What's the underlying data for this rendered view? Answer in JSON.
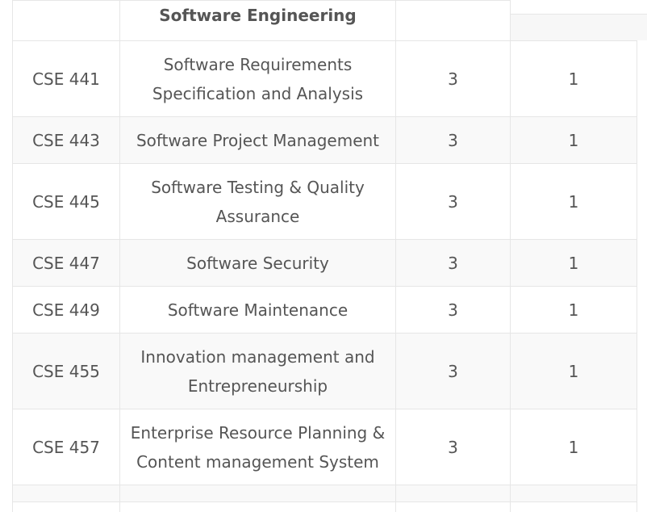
{
  "section_title": "Software Engineering",
  "rows": [
    {
      "code": "CSE 441",
      "title": "Software Requirements Specification and Analysis",
      "credit": "3",
      "col4": "1"
    },
    {
      "code": "CSE 443",
      "title": "Software Project Management",
      "credit": "3",
      "col4": "1"
    },
    {
      "code": "CSE 445",
      "title": "Software Testing & Quality Assurance",
      "credit": "3",
      "col4": "1"
    },
    {
      "code": "CSE 447",
      "title": "Software Security",
      "credit": "3",
      "col4": "1"
    },
    {
      "code": "CSE 449",
      "title": "Software Maintenance",
      "credit": "3",
      "col4": "1"
    },
    {
      "code": "CSE 455",
      "title": "Innovation management and Entrepreneurship",
      "credit": "3",
      "col4": "1"
    },
    {
      "code": "CSE 457",
      "title": "Enterprise Resource Planning & Content management System",
      "credit": "3",
      "col4": "1"
    }
  ]
}
